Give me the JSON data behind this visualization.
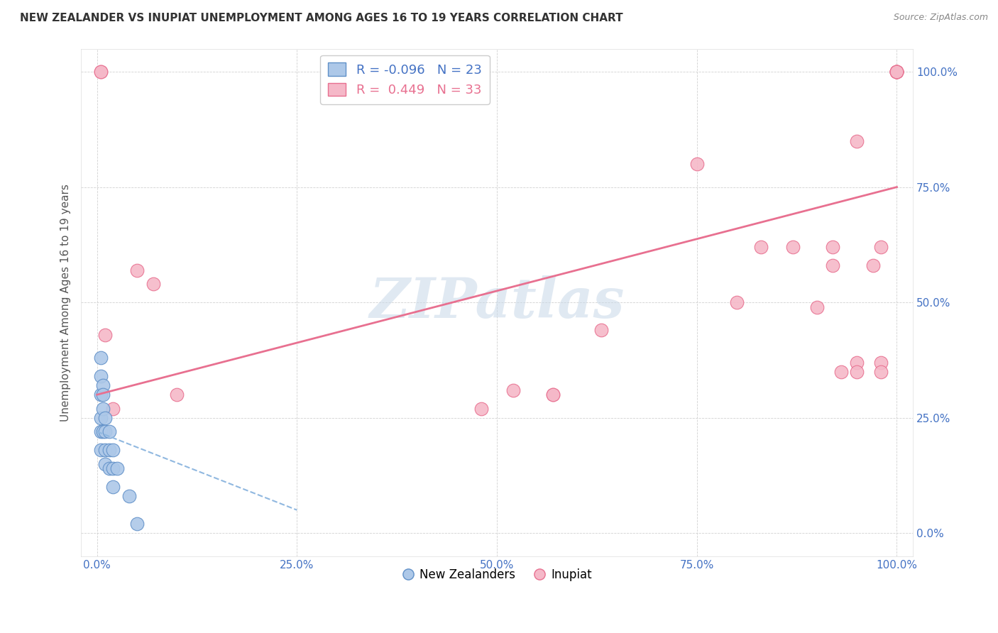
{
  "title": "NEW ZEALANDER VS INUPIAT UNEMPLOYMENT AMONG AGES 16 TO 19 YEARS CORRELATION CHART",
  "source": "Source: ZipAtlas.com",
  "ylabel": "Unemployment Among Ages 16 to 19 years",
  "xlim": [
    -0.02,
    1.02
  ],
  "ylim": [
    -0.05,
    1.05
  ],
  "xticks": [
    0.0,
    0.25,
    0.5,
    0.75,
    1.0
  ],
  "yticks": [
    0.0,
    0.25,
    0.5,
    0.75,
    1.0
  ],
  "xtick_labels": [
    "0.0%",
    "25.0%",
    "50.0%",
    "75.0%",
    "100.0%"
  ],
  "ytick_labels": [
    "0.0%",
    "25.0%",
    "50.0%",
    "75.0%",
    "100.0%"
  ],
  "legend_r1": "R = -0.096",
  "legend_n1": "N = 23",
  "legend_r2": "R =  0.449",
  "legend_n2": "N = 33",
  "blue_color": "#adc8e8",
  "pink_color": "#f5b8c8",
  "blue_edge": "#6090c8",
  "pink_edge": "#e87090",
  "trend_pink_color": "#e87090",
  "trend_blue_color": "#90b8e0",
  "watermark_color": "#c8d8e8",
  "watermark_text": "ZIPatlas",
  "tick_color": "#4472c4",
  "title_color": "#333333",
  "source_color": "#888888",
  "grid_color": "#cccccc",
  "nz_x": [
    0.005,
    0.005,
    0.005,
    0.005,
    0.005,
    0.005,
    0.007,
    0.007,
    0.007,
    0.007,
    0.01,
    0.01,
    0.01,
    0.01,
    0.015,
    0.015,
    0.015,
    0.02,
    0.02,
    0.02,
    0.025,
    0.04,
    0.05
  ],
  "nz_y": [
    0.38,
    0.34,
    0.3,
    0.25,
    0.22,
    0.18,
    0.32,
    0.3,
    0.27,
    0.22,
    0.25,
    0.22,
    0.18,
    0.15,
    0.22,
    0.18,
    0.14,
    0.18,
    0.14,
    0.1,
    0.14,
    0.08,
    0.02
  ],
  "inupiat_x": [
    0.005,
    0.005,
    0.01,
    0.02,
    0.05,
    0.07,
    0.1,
    0.48,
    0.52,
    0.57,
    0.57,
    0.63,
    0.75,
    0.8,
    0.83,
    0.87,
    0.9,
    0.92,
    0.92,
    0.93,
    0.95,
    0.95,
    0.95,
    0.97,
    0.98,
    0.98,
    0.98,
    1.0,
    1.0,
    1.0,
    1.0,
    1.0,
    1.0
  ],
  "inupiat_y": [
    1.0,
    1.0,
    0.43,
    0.27,
    0.57,
    0.54,
    0.3,
    0.27,
    0.31,
    0.3,
    0.3,
    0.44,
    0.8,
    0.5,
    0.62,
    0.62,
    0.49,
    0.62,
    0.58,
    0.35,
    0.37,
    0.35,
    0.85,
    0.58,
    0.37,
    0.35,
    0.62,
    1.0,
    1.0,
    1.0,
    1.0,
    1.0,
    1.0
  ],
  "trend_pink_x0": 0.0,
  "trend_pink_y0": 0.3,
  "trend_pink_x1": 1.0,
  "trend_pink_y1": 0.75,
  "trend_blue_x0": 0.0,
  "trend_blue_y0": 0.22,
  "trend_blue_x1": 0.25,
  "trend_blue_y1": 0.05
}
